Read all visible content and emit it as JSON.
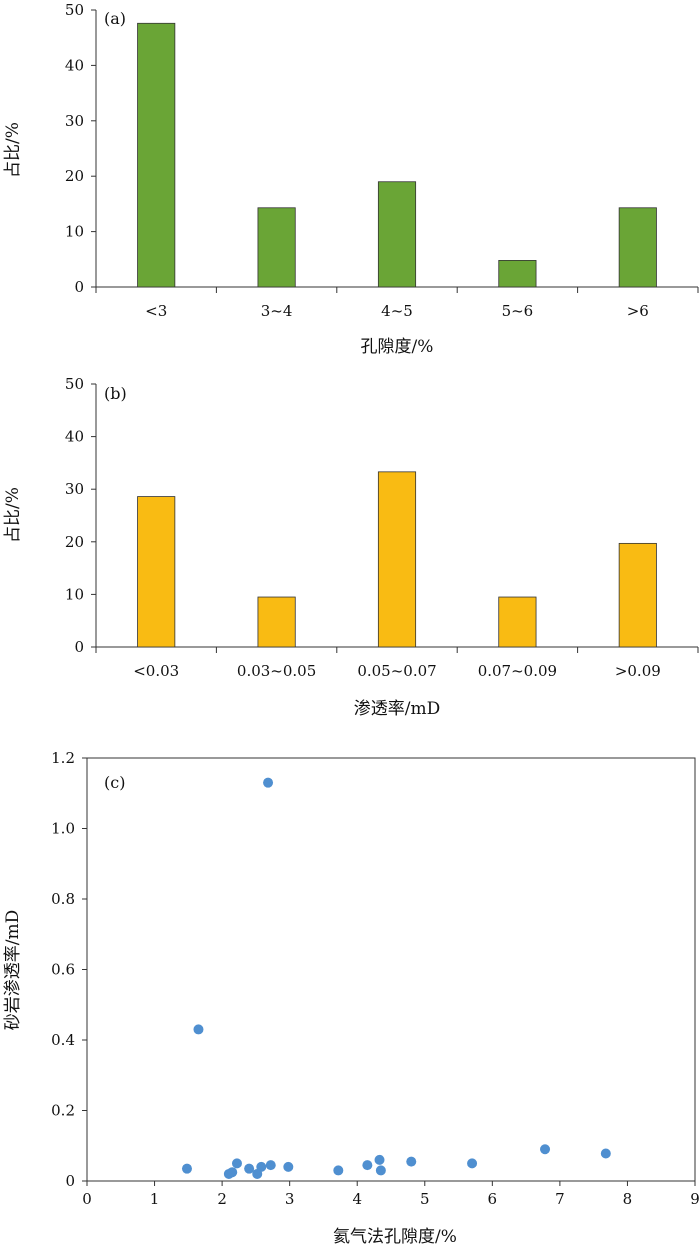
{
  "chart_data": [
    {
      "type": "bar",
      "panel_label": "(a)",
      "categories": [
        "<3",
        "3~4",
        "4~5",
        "5~6",
        ">6"
      ],
      "values": [
        47.6,
        14.3,
        19.0,
        4.8,
        14.3
      ],
      "xlabel": "孔隙度/%",
      "ylabel": "占比/%",
      "ylim": [
        0,
        50
      ],
      "yticks": [
        "0",
        "10",
        "20",
        "30",
        "40",
        "50"
      ],
      "color": "#6aa536"
    },
    {
      "type": "bar",
      "panel_label": "(b)",
      "categories": [
        "<0.03",
        "0.03~0.05",
        "0.05~0.07",
        "0.07~0.09",
        ">0.09"
      ],
      "values": [
        28.6,
        9.5,
        33.3,
        9.5,
        19.7
      ],
      "xlabel": "渗透率/mD",
      "ylabel": "占比/%",
      "ylim": [
        0,
        50
      ],
      "yticks": [
        "0",
        "10",
        "20",
        "30",
        "40",
        "50"
      ],
      "color": "#f9bb13"
    },
    {
      "type": "scatter",
      "panel_label": "(c)",
      "points": [
        {
          "x": 1.48,
          "y": 0.035
        },
        {
          "x": 1.65,
          "y": 0.43
        },
        {
          "x": 2.1,
          "y": 0.02
        },
        {
          "x": 2.15,
          "y": 0.025
        },
        {
          "x": 2.22,
          "y": 0.05
        },
        {
          "x": 2.4,
          "y": 0.035
        },
        {
          "x": 2.52,
          "y": 0.02
        },
        {
          "x": 2.58,
          "y": 0.04
        },
        {
          "x": 2.68,
          "y": 1.13
        },
        {
          "x": 2.72,
          "y": 0.045
        },
        {
          "x": 2.98,
          "y": 0.04
        },
        {
          "x": 3.72,
          "y": 0.03
        },
        {
          "x": 4.15,
          "y": 0.045
        },
        {
          "x": 4.33,
          "y": 0.06
        },
        {
          "x": 4.35,
          "y": 0.03
        },
        {
          "x": 4.8,
          "y": 0.055
        },
        {
          "x": 5.7,
          "y": 0.05
        },
        {
          "x": 6.78,
          "y": 0.09
        },
        {
          "x": 7.68,
          "y": 0.078
        }
      ],
      "xlabel": "氦气法孔隙度/%",
      "ylabel": "砂岩渗透率/mD",
      "xlim": [
        0,
        9
      ],
      "ylim": [
        0,
        1.2
      ],
      "xticks": [
        "0",
        "1",
        "2",
        "3",
        "4",
        "5",
        "6",
        "7",
        "8",
        "9"
      ],
      "yticks": [
        "0",
        "0.2",
        "0.4",
        "0.6",
        "0.8",
        "1.0",
        "1.2"
      ],
      "color": "#4f8fd0"
    }
  ]
}
